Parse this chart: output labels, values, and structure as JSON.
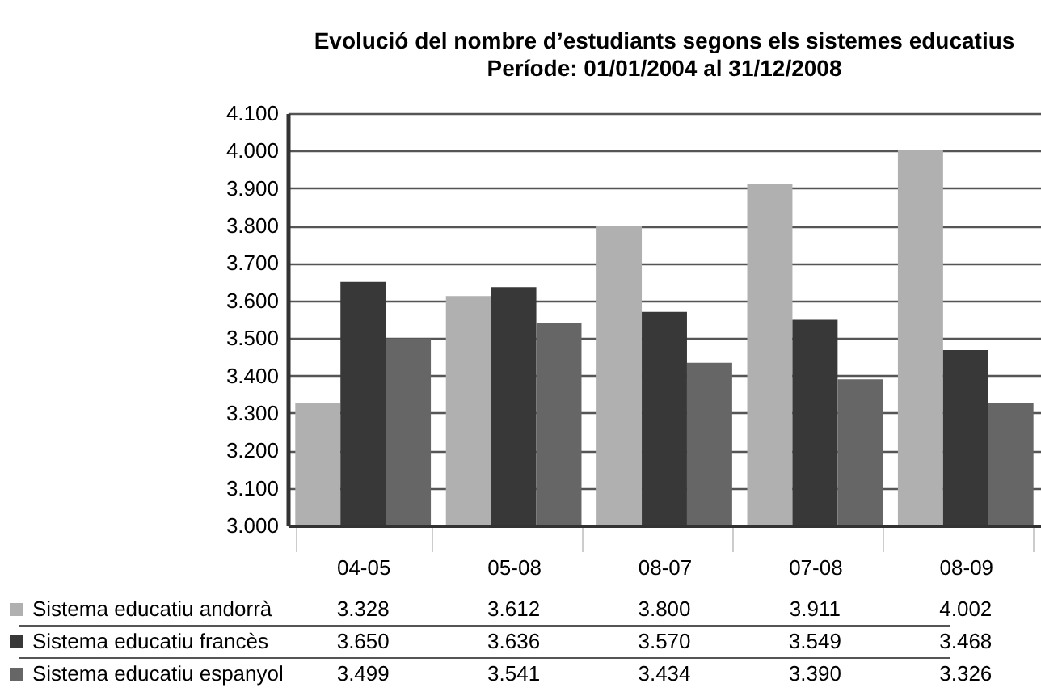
{
  "chart_data": {
    "type": "bar",
    "title": "Evolució del nombre d’estudiants segons els sistemes educatius",
    "subtitle": "Període: 01/01/2004 al 31/12/2008",
    "categories": [
      "04-05",
      "05-08",
      "08-07",
      "07-08",
      "08-09"
    ],
    "series": [
      {
        "name": "Sistema educatiu andorrà",
        "color": "#b0b0b0",
        "values": [
          3328,
          3612,
          3800,
          3911,
          4002
        ],
        "value_labels": [
          "3.328",
          "3.612",
          "3.800",
          "3.911",
          "4.002"
        ]
      },
      {
        "name": "Sistema educatiu francès",
        "color": "#383838",
        "values": [
          3650,
          3636,
          3570,
          3549,
          3468
        ],
        "value_labels": [
          "3.650",
          "3.636",
          "3.570",
          "3.549",
          "3.468"
        ]
      },
      {
        "name": "Sistema educatiu espanyol",
        "color": "#666666",
        "values": [
          3499,
          3541,
          3434,
          3390,
          3326
        ],
        "value_labels": [
          "3.499",
          "3.541",
          "3.434",
          "3.390",
          "3.326"
        ]
      }
    ],
    "ylim": [
      3000,
      4100
    ],
    "yticks": [
      {
        "value": 3000,
        "label": "3.000"
      },
      {
        "value": 3100,
        "label": "3.100"
      },
      {
        "value": 3200,
        "label": "3.200"
      },
      {
        "value": 3300,
        "label": "3.300"
      },
      {
        "value": 3400,
        "label": "3.400"
      },
      {
        "value": 3500,
        "label": "3.500"
      },
      {
        "value": 3600,
        "label": "3.600"
      },
      {
        "value": 3700,
        "label": "3.700"
      },
      {
        "value": 3800,
        "label": "3.800"
      },
      {
        "value": 3900,
        "label": "3.900"
      },
      {
        "value": 4000,
        "label": "4.000"
      },
      {
        "value": 4100,
        "label": "4.100"
      }
    ],
    "grid": "y",
    "legend": "bottom left"
  }
}
